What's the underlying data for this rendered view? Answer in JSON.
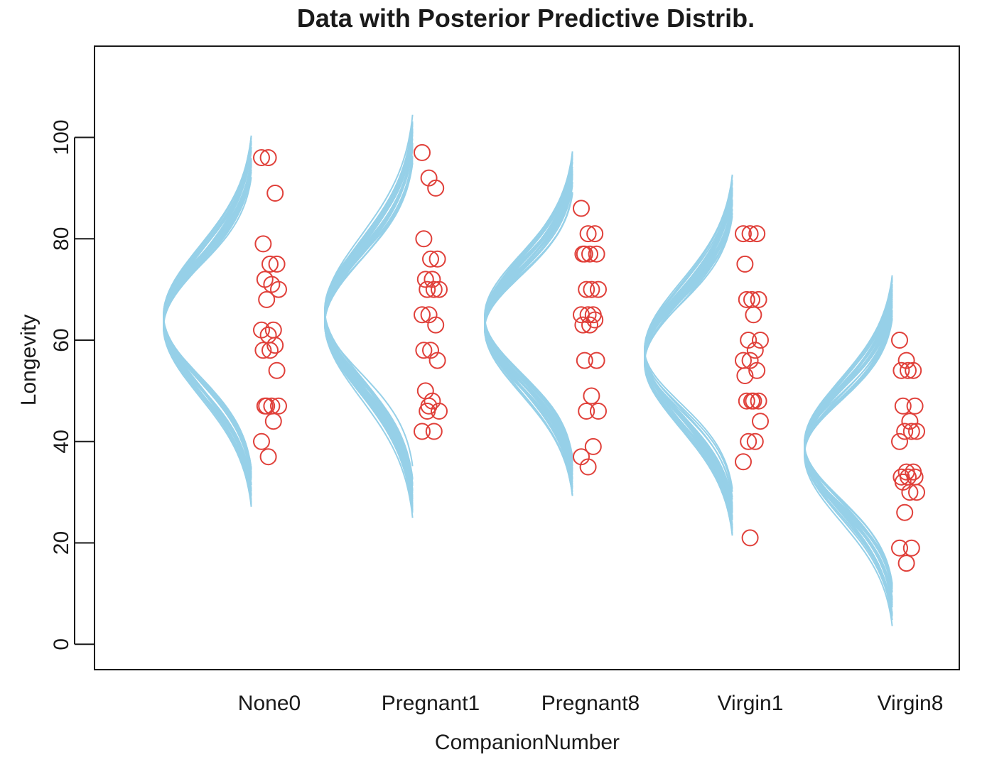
{
  "chart_data": {
    "type": "scatter",
    "title": "Data with Posterior Predictive Distrib.",
    "xlabel": "CompanionNumber",
    "ylabel": "Longevity",
    "ylim": [
      -5,
      118
    ],
    "yticks": [
      0,
      20,
      40,
      60,
      80,
      100
    ],
    "categories": [
      "None0",
      "Pregnant1",
      "Pregnant8",
      "Virgin1",
      "Virgin8"
    ],
    "colors": {
      "points": "#e0403a",
      "curves": "#96d0e8",
      "axis": "#1a1a1a"
    },
    "series": [
      {
        "category": "None0",
        "values": [
          96,
          96,
          89,
          79,
          75,
          75,
          72,
          71,
          70,
          68,
          62,
          62,
          61,
          59,
          58,
          58,
          54,
          47,
          47,
          47,
          47,
          44,
          40,
          37
        ]
      },
      {
        "category": "Pregnant1",
        "values": [
          97,
          92,
          90,
          80,
          76,
          76,
          72,
          72,
          70,
          70,
          70,
          65,
          65,
          63,
          58,
          58,
          56,
          50,
          48,
          46,
          46,
          42,
          42,
          47
        ]
      },
      {
        "category": "Pregnant8",
        "values": [
          86,
          81,
          81,
          77,
          77,
          77,
          77,
          70,
          70,
          70,
          65,
          65,
          65,
          64,
          63,
          63,
          56,
          56,
          49,
          46,
          46,
          39,
          37,
          35
        ]
      },
      {
        "category": "Virgin1",
        "values": [
          81,
          81,
          81,
          75,
          68,
          68,
          68,
          65,
          60,
          60,
          58,
          56,
          56,
          54,
          53,
          48,
          48,
          48,
          48,
          44,
          40,
          40,
          36,
          21
        ]
      },
      {
        "category": "Virgin8",
        "values": [
          60,
          56,
          54,
          54,
          54,
          47,
          47,
          44,
          42,
          42,
          42,
          40,
          34,
          34,
          33,
          33,
          33,
          32,
          30,
          30,
          26,
          19,
          19,
          16
        ]
      }
    ],
    "posterior_curves": [
      {
        "category": "None0",
        "mean": 63.6,
        "sd_range": [
          11,
          14
        ],
        "mean_spread": 3
      },
      {
        "category": "Pregnant1",
        "mean": 64.6,
        "sd_range": [
          11.5,
          15
        ],
        "mean_spread": 3
      },
      {
        "category": "Pregnant8",
        "mean": 63.4,
        "sd_range": [
          10,
          13
        ],
        "mean_spread": 3
      },
      {
        "category": "Virgin1",
        "mean": 56.8,
        "sd_range": [
          10.5,
          13.5
        ],
        "mean_spread": 3
      },
      {
        "category": "Virgin8",
        "mean": 38.7,
        "sd_range": [
          10,
          13
        ],
        "mean_spread": 3
      }
    ]
  }
}
